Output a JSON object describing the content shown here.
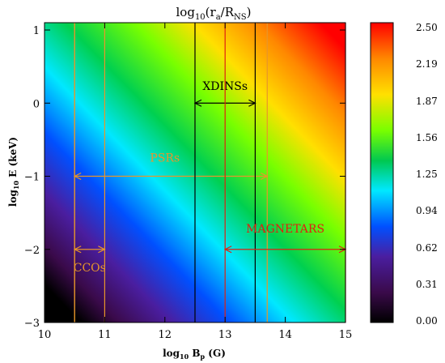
{
  "chart_data": {
    "type": "heatmap",
    "title": "log10(ra/RNS)",
    "title_parts": {
      "prefix": "log",
      "sub1": "10",
      "open": "(r",
      "sub2": "a",
      "mid": "/R",
      "sub3": "NS",
      "close": ")"
    },
    "xlabel_parts": {
      "prefix": "log",
      "sub1": "10",
      "mid": " B",
      "sub2": "p",
      "suffix": " (G)"
    },
    "ylabel_parts": {
      "prefix": "log",
      "sub1": "10",
      "suffix": " E (keV)"
    },
    "xlim": [
      10,
      15
    ],
    "ylim": [
      -3,
      1.1
    ],
    "x_ticks": [
      10,
      11,
      12,
      13,
      14,
      15
    ],
    "y_ticks": [
      -3,
      -2,
      -1,
      0,
      1
    ],
    "x_tick_labels": [
      "10",
      "11",
      "12",
      "13",
      "14",
      "15"
    ],
    "y_tick_labels": [
      "−3",
      "−2",
      "−1",
      "0",
      "1"
    ],
    "z_range": [
      0.0,
      2.5
    ],
    "colorbar_ticks": [
      0.0,
      0.31,
      0.62,
      0.94,
      1.25,
      1.56,
      1.87,
      2.19,
      2.5
    ],
    "colorbar_labels": [
      "0.00",
      "0.31",
      "0.62",
      "0.94",
      "1.25",
      "1.56",
      "1.87",
      "2.19",
      "2.50"
    ],
    "colormap": "rainbow",
    "annotations": [
      {
        "name": "PSRs",
        "label": "PSRs",
        "color": "#e8962a",
        "x_range": [
          10.5,
          13.7
        ],
        "lines_x": [
          10.5,
          13.7
        ],
        "arrow_y": -1.0,
        "label_pos": [
          12.0,
          -0.8
        ]
      },
      {
        "name": "CCOs",
        "label": "CCOs",
        "color": "#e8962a",
        "x_range": [
          10.5,
          11.0
        ],
        "lines_x": [
          10.5,
          11.0
        ],
        "arrow_y": -2.0,
        "label_pos": [
          10.75,
          -2.3
        ]
      },
      {
        "name": "XDINSs",
        "label": "XDINSs",
        "color": "#000000",
        "x_range": [
          12.5,
          13.5
        ],
        "lines_x": [
          12.5,
          13.5
        ],
        "arrow_y": 0.0,
        "label_pos": [
          13.0,
          0.18
        ]
      },
      {
        "name": "MAGNETARS",
        "label": "MAGNETARS",
        "color": "#e02010",
        "x_range": [
          13.0,
          15.0
        ],
        "lines_x": [
          13.0,
          15.0
        ],
        "arrow_y": -2.0,
        "label_pos": [
          14.0,
          -1.77
        ]
      }
    ]
  }
}
